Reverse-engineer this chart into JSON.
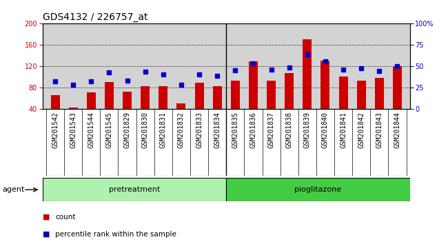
{
  "title": "GDS4132 / 226757_at",
  "samples": [
    "GSM201542",
    "GSM201543",
    "GSM201544",
    "GSM201545",
    "GSM201829",
    "GSM201830",
    "GSM201831",
    "GSM201832",
    "GSM201833",
    "GSM201834",
    "GSM201835",
    "GSM201836",
    "GSM201837",
    "GSM201838",
    "GSM201839",
    "GSM201840",
    "GSM201841",
    "GSM201842",
    "GSM201843",
    "GSM201844"
  ],
  "count_values": [
    65,
    42,
    70,
    90,
    72,
    82,
    82,
    50,
    88,
    82,
    92,
    128,
    92,
    107,
    170,
    130,
    100,
    92,
    97,
    120
  ],
  "percentile_values": [
    32,
    28,
    32,
    42,
    33,
    43,
    40,
    28,
    40,
    38,
    45,
    53,
    46,
    48,
    63,
    55,
    46,
    47,
    44,
    50
  ],
  "pretreatment_count": 10,
  "pioglitazone_count": 10,
  "ylim_left": [
    40,
    200
  ],
  "ylim_right": [
    0,
    100
  ],
  "yticks_left": [
    40,
    80,
    120,
    160,
    200
  ],
  "yticks_right": [
    0,
    25,
    50,
    75,
    100
  ],
  "ytick_labels_right": [
    "0",
    "25",
    "50",
    "75",
    "100%"
  ],
  "bar_color": "#cc0000",
  "dot_color": "#0000cc",
  "bg_color": "#d3d3d3",
  "pretreat_color": "#b0f0b0",
  "pioglitazone_color": "#44cc44",
  "agent_label": "agent",
  "pretreat_label": "pretreatment",
  "pioglitazone_label": "pioglitazone",
  "legend_count_label": "count",
  "legend_pct_label": "percentile rank within the sample",
  "grid_color": "#000000",
  "title_fontsize": 10,
  "tick_fontsize": 7,
  "label_fontsize": 8,
  "bar_width": 0.5
}
